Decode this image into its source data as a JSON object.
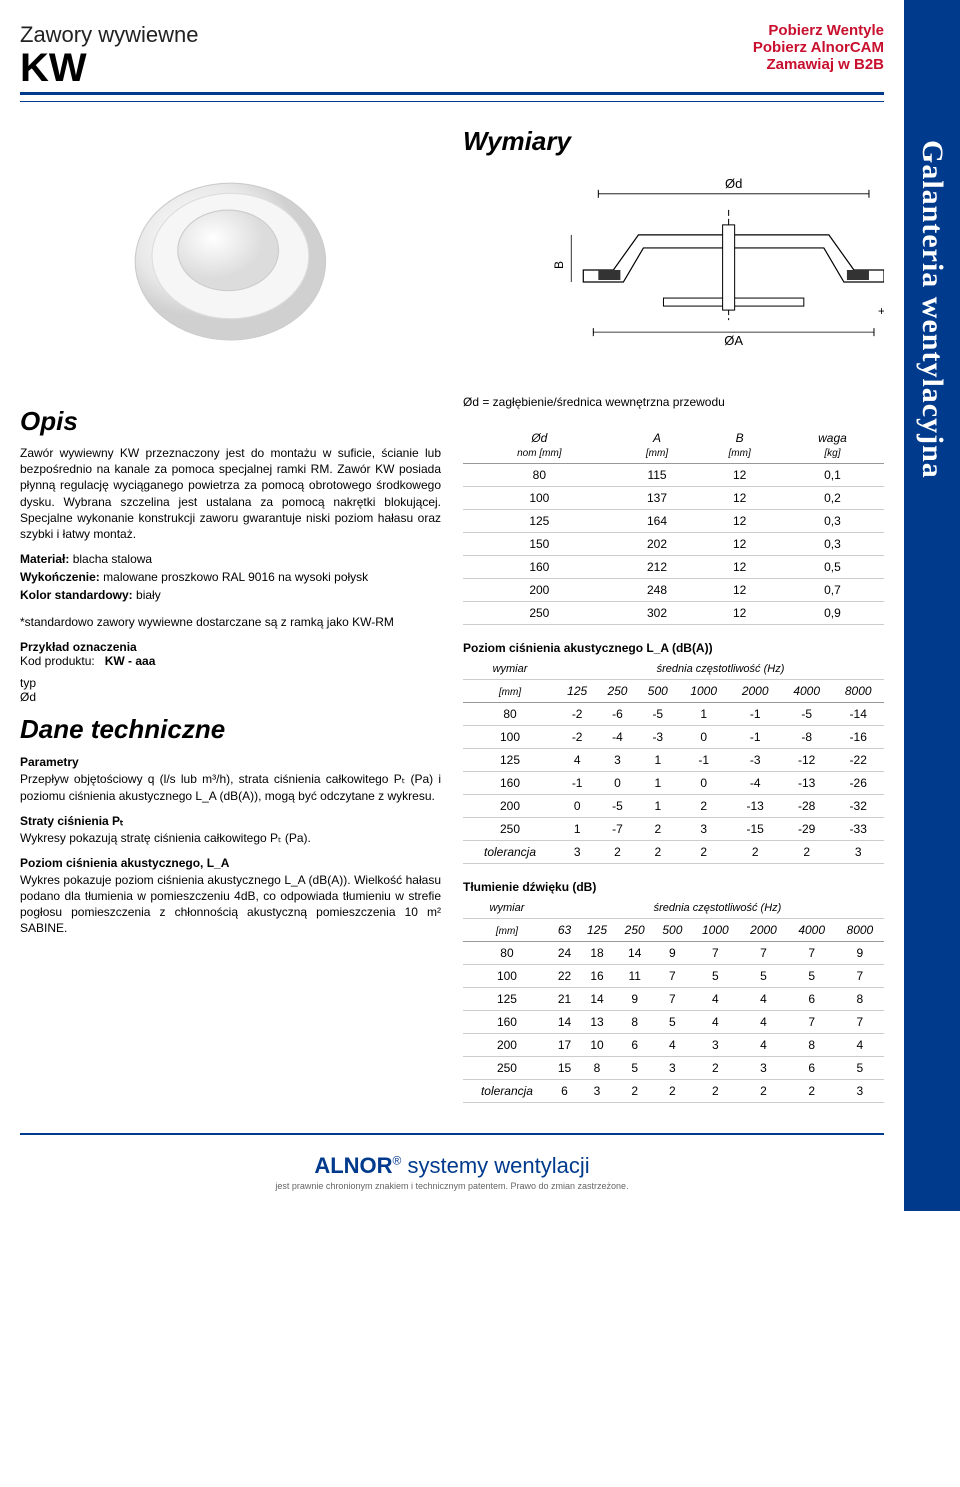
{
  "header": {
    "page_title": "Zawory wywiewne",
    "product_code": "KW",
    "links": [
      "Pobierz Wentyle",
      "Pobierz AlnorCAM",
      "Zamawiaj w B2B"
    ]
  },
  "sidebar_tab": "Galanteria wentylacyjna",
  "opis": {
    "title": "Opis",
    "p1": "Zawór wywiewny KW przeznaczony jest do montażu w suficie, ścianie lub bezpośrednio na kanale za pomoca specjalnej ramki RM. Zawór KW posiada płynną regulację wyciąganego powietrza za pomocą obrotowego środkowego dysku. Wybrana szczelina jest ustalana za pomocą nakrętki blokującej. Specjalne wykonanie konstrukcji zaworu gwarantuje niski poziom hałasu oraz szybki i łatwy montaż.",
    "material_label": "Materiał:",
    "material": " blacha stalowa",
    "finish_label": "Wykończenie:",
    "finish": " malowane proszkowo RAL 9016 na wysoki połysk",
    "color_label": "Kolor standardowy:",
    "color": " biały",
    "note": "*standardowo zawory wywiewne dostarczane są z ramką jako KW-RM",
    "example_label": "Przykład oznaczenia",
    "code_label": "Kod produktu:",
    "code_val": "KW   -   aaa",
    "type_label": "typ",
    "diameter_label": "Ød"
  },
  "dane": {
    "title": "Dane techniczne",
    "params_title": "Parametry",
    "params_text": "Przepływ objętościowy q (l/s lub m³/h), strata ciśnienia całkowitego Pₜ (Pa) i poziomu ciśnienia akustycznego L_A (dB(A)), mogą być odczytane z wykresu.",
    "loss_title": "Straty ciśnienia Pₜ",
    "loss_text": "Wykresy pokazują stratę ciśnienia całkowitego Pₜ (Pa).",
    "acoustic_title": "Poziom ciśnienia akustycznego, L_A",
    "acoustic_text": "Wykres pokazuje poziom ciśnienia akustycznego L_A (dB(A)). Wielkość hałasu podano dla tłumienia w pomieszczeniu 4dB, co odpowiada tłumieniu w strefie pogłosu pomieszczenia z chłonnością akustyczną pomieszczenia 10 m² SABINE."
  },
  "wymiary": {
    "title": "Wymiary",
    "diagram_note": "Ød = zagłębienie/średnica wewnętrzna przewodu",
    "labels": {
      "od": "Ød",
      "oa": "ØA",
      "b": "B",
      "plus": "+"
    }
  },
  "dim_table": {
    "headers": [
      {
        "top": "Ød",
        "sub": "nom [mm]"
      },
      {
        "top": "A",
        "sub": "[mm]"
      },
      {
        "top": "B",
        "sub": "[mm]"
      },
      {
        "top": "waga",
        "sub": "[kg]"
      }
    ],
    "rows": [
      [
        "80",
        "115",
        "12",
        "0,1"
      ],
      [
        "100",
        "137",
        "12",
        "0,2"
      ],
      [
        "125",
        "164",
        "12",
        "0,3"
      ],
      [
        "150",
        "202",
        "12",
        "0,3"
      ],
      [
        "160",
        "212",
        "12",
        "0,5"
      ],
      [
        "200",
        "248",
        "12",
        "0,7"
      ],
      [
        "250",
        "302",
        "12",
        "0,9"
      ]
    ]
  },
  "acoustic_table": {
    "title": "Poziom ciśnienia akustycznego L_A (dB(A))",
    "dim_label": "wymiar",
    "freq_label": "średnia częstotliwość (Hz)",
    "unit": "[mm]",
    "freqs": [
      "125",
      "250",
      "500",
      "1000",
      "2000",
      "4000",
      "8000"
    ],
    "rows": [
      [
        "80",
        "-2",
        "-6",
        "-5",
        "1",
        "-1",
        "-5",
        "-14"
      ],
      [
        "100",
        "-2",
        "-4",
        "-3",
        "0",
        "-1",
        "-8",
        "-16"
      ],
      [
        "125",
        "4",
        "3",
        "1",
        "-1",
        "-3",
        "-12",
        "-22"
      ],
      [
        "160",
        "-1",
        "0",
        "1",
        "0",
        "-4",
        "-13",
        "-26"
      ],
      [
        "200",
        "0",
        "-5",
        "1",
        "2",
        "-13",
        "-28",
        "-32"
      ],
      [
        "250",
        "1",
        "-7",
        "2",
        "3",
        "-15",
        "-29",
        "-33"
      ]
    ],
    "tolerance_label": "tolerancja",
    "tolerance": [
      "3",
      "2",
      "2",
      "2",
      "2",
      "2",
      "3"
    ]
  },
  "damping_table": {
    "title": "Tłumienie dźwięku (dB)",
    "dim_label": "wymiar",
    "freq_label": "średnia częstotliwość (Hz)",
    "unit": "[mm]",
    "freqs": [
      "63",
      "125",
      "250",
      "500",
      "1000",
      "2000",
      "4000",
      "8000"
    ],
    "rows": [
      [
        "80",
        "24",
        "18",
        "14",
        "9",
        "7",
        "7",
        "7",
        "9"
      ],
      [
        "100",
        "22",
        "16",
        "11",
        "7",
        "5",
        "5",
        "5",
        "7"
      ],
      [
        "125",
        "21",
        "14",
        "9",
        "7",
        "4",
        "4",
        "6",
        "8"
      ],
      [
        "160",
        "14",
        "13",
        "8",
        "5",
        "4",
        "4",
        "7",
        "7"
      ],
      [
        "200",
        "17",
        "10",
        "6",
        "4",
        "3",
        "4",
        "8",
        "4"
      ],
      [
        "250",
        "15",
        "8",
        "5",
        "3",
        "2",
        "3",
        "6",
        "5"
      ]
    ],
    "tolerance_label": "tolerancja",
    "tolerance": [
      "6",
      "3",
      "2",
      "2",
      "2",
      "2",
      "2",
      "3"
    ]
  },
  "footer": {
    "brand": "ALNOR",
    "tagline": " systemy wentylacji",
    "reg": "®",
    "legal": "jest prawnie chronionym znakiem i technicznym patentem. Prawo do zmian zastrzeżone."
  },
  "colors": {
    "brand_blue": "#003a8c",
    "link_red": "#c8102e"
  }
}
